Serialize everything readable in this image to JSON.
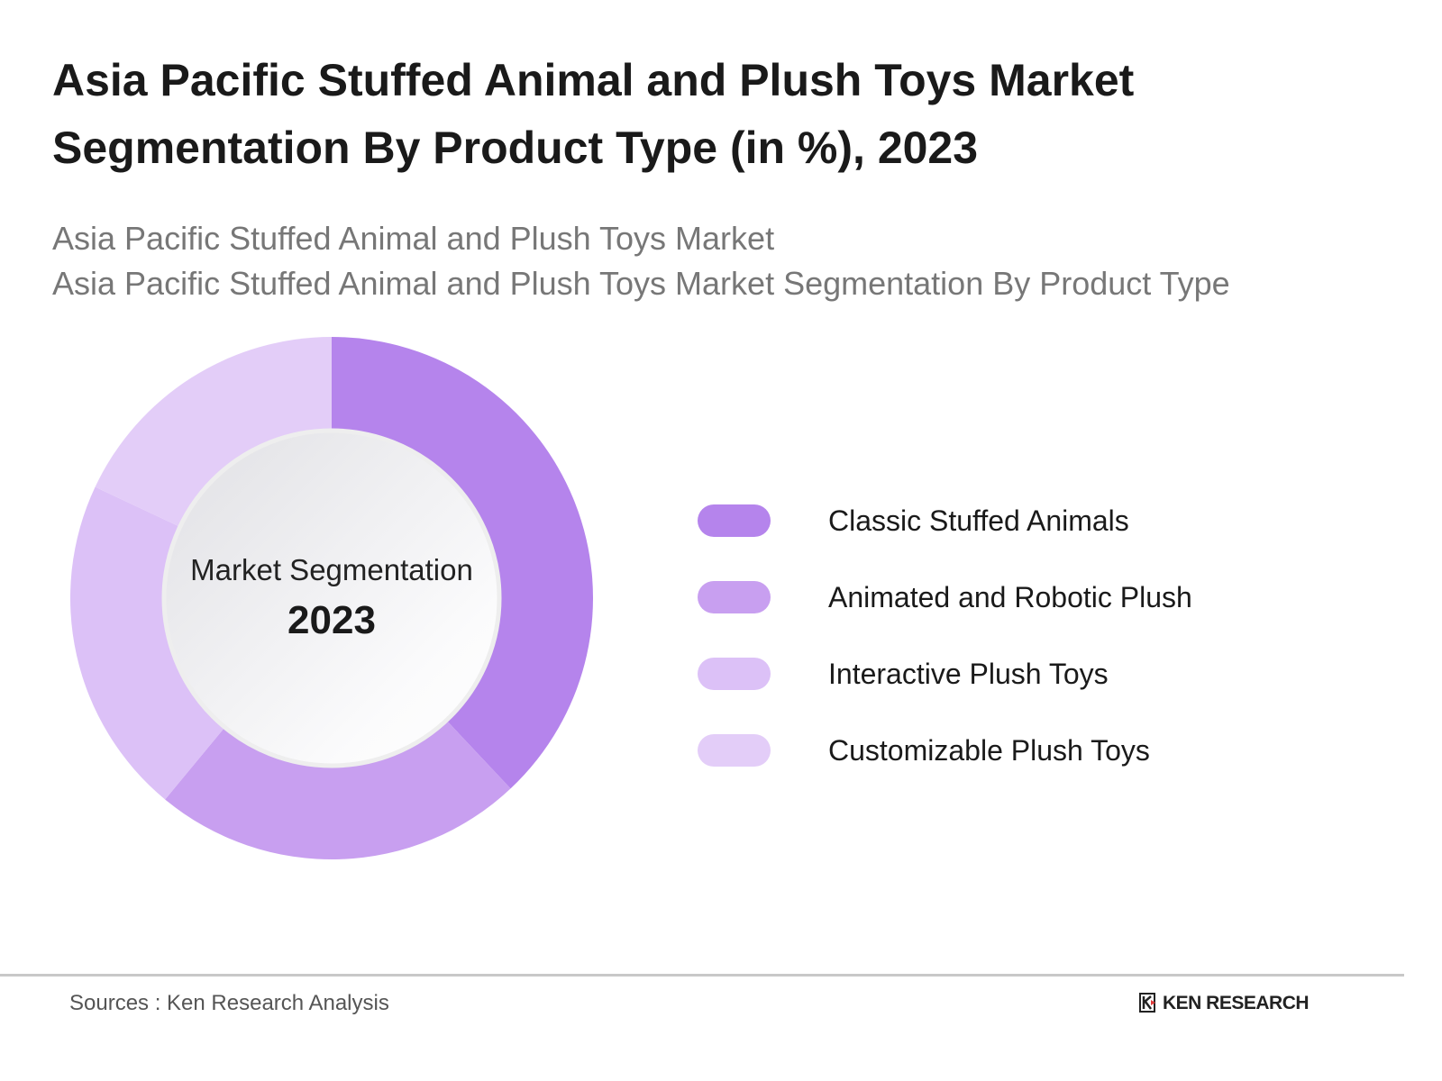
{
  "header": {
    "title": "Asia Pacific Stuffed Animal and Plush Toys Market Segmentation By Product Type (in %), 2023",
    "subtitle_1": "Asia Pacific Stuffed Animal and Plush Toys Market",
    "subtitle_2": "Asia Pacific Stuffed Animal and Plush Toys Market Segmentation By Product Type"
  },
  "chart_data": {
    "type": "pie",
    "variant": "donut",
    "center_label": "Market Segmentation",
    "center_year": "2023",
    "categories": [
      "Classic Stuffed Animals",
      "Animated and Robotic Plush",
      "Interactive Plush Toys",
      "Customizable Plush Toys"
    ],
    "values": [
      38,
      23,
      21,
      18
    ],
    "colors": [
      "#b584ec",
      "#c89ff0",
      "#dcc1f7",
      "#e3cdf8"
    ],
    "legend_position": "right"
  },
  "footer": {
    "source": "Sources : Ken Research Analysis",
    "logo_text": "KEN RESEARCH"
  }
}
